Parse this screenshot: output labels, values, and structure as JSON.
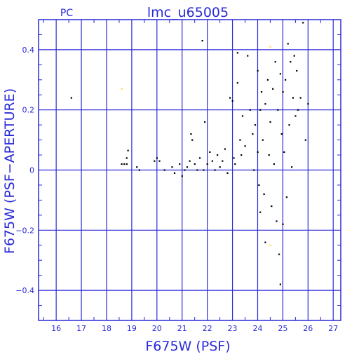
{
  "chart_data": {
    "type": "scatter",
    "title": "lmc_u65005",
    "corner_label": "PC",
    "xlabel": "F675W (PSF)",
    "ylabel": "F675W (PSF−APERTURE)",
    "xlim": [
      15.3,
      27.3
    ],
    "ylim": [
      -0.5,
      0.5
    ],
    "grid": true,
    "xticks": [
      16,
      17,
      18,
      19,
      20,
      21,
      22,
      23,
      24,
      25,
      26,
      27
    ],
    "yticks": [
      -0.4,
      -0.2,
      0,
      0.2,
      0.4
    ],
    "ytick_labels": [
      "−0.4",
      "−0.2",
      "0",
      "0.2",
      "0.4"
    ],
    "colors": {
      "axes": "#2a2ad8",
      "points": "#000000",
      "highlight": "#ffd24a"
    },
    "series": [
      {
        "points": [
          [
            16.6,
            0.24
          ],
          [
            18.6,
            0.02
          ],
          [
            18.7,
            0.02
          ],
          [
            18.8,
            0.02
          ],
          [
            18.85,
            0.065
          ],
          [
            18.8,
            0.04
          ],
          [
            19.2,
            0.01
          ],
          [
            19.3,
            0.0
          ],
          [
            19.9,
            0.03
          ],
          [
            20.0,
            0.04
          ],
          [
            20.1,
            0.03
          ],
          [
            20.3,
            0.0
          ],
          [
            20.6,
            0.01
          ],
          [
            20.7,
            -0.01
          ],
          [
            20.9,
            0.02
          ],
          [
            21.0,
            -0.02
          ],
          [
            21.1,
            0.0
          ],
          [
            21.2,
            0.01
          ],
          [
            21.3,
            0.03
          ],
          [
            21.35,
            0.12
          ],
          [
            21.4,
            0.1
          ],
          [
            21.5,
            0.02
          ],
          [
            21.6,
            0.0
          ],
          [
            21.7,
            0.04
          ],
          [
            21.8,
            0.43
          ],
          [
            21.85,
            0.0
          ],
          [
            21.9,
            0.16
          ],
          [
            22.0,
            0.02
          ],
          [
            22.1,
            0.06
          ],
          [
            22.2,
            0.03
          ],
          [
            22.3,
            0.0
          ],
          [
            22.4,
            0.05
          ],
          [
            22.5,
            0.01
          ],
          [
            22.6,
            0.03
          ],
          [
            22.7,
            0.07
          ],
          [
            22.8,
            -0.01
          ],
          [
            22.9,
            0.24
          ],
          [
            23.0,
            0.23
          ],
          [
            23.05,
            0.04
          ],
          [
            23.1,
            0.02
          ],
          [
            23.2,
            0.39
          ],
          [
            23.2,
            0.29
          ],
          [
            23.3,
            0.1
          ],
          [
            23.35,
            0.05
          ],
          [
            23.4,
            0.18
          ],
          [
            23.5,
            0.08
          ],
          [
            23.6,
            0.38
          ],
          [
            23.7,
            0.2
          ],
          [
            23.8,
            0.12
          ],
          [
            23.85,
            0.0
          ],
          [
            23.9,
            0.15
          ],
          [
            24.0,
            0.33
          ],
          [
            24.0,
            0.06
          ],
          [
            24.05,
            -0.05
          ],
          [
            24.1,
            0.2
          ],
          [
            24.1,
            -0.14
          ],
          [
            24.15,
            0.26
          ],
          [
            24.2,
            0.1
          ],
          [
            24.25,
            -0.08
          ],
          [
            24.3,
            0.22
          ],
          [
            24.3,
            -0.24
          ],
          [
            24.4,
            0.3
          ],
          [
            24.45,
            0.05
          ],
          [
            24.5,
            0.16
          ],
          [
            24.55,
            -0.12
          ],
          [
            24.6,
            0.27
          ],
          [
            24.65,
            0.02
          ],
          [
            24.7,
            0.36
          ],
          [
            24.75,
            -0.17
          ],
          [
            24.8,
            0.2
          ],
          [
            24.85,
            -0.28
          ],
          [
            24.9,
            0.32
          ],
          [
            24.9,
            -0.38
          ],
          [
            24.95,
            0.12
          ],
          [
            25.0,
            0.26
          ],
          [
            25.0,
            -0.18
          ],
          [
            25.05,
            0.06
          ],
          [
            25.1,
            0.3
          ],
          [
            25.15,
            -0.09
          ],
          [
            25.2,
            0.42
          ],
          [
            25.25,
            0.15
          ],
          [
            25.3,
            0.36
          ],
          [
            25.35,
            0.01
          ],
          [
            25.4,
            0.24
          ],
          [
            25.45,
            0.38
          ],
          [
            25.5,
            0.18
          ],
          [
            25.55,
            0.33
          ],
          [
            25.6,
            0.2
          ],
          [
            25.7,
            0.24
          ],
          [
            25.8,
            0.49
          ],
          [
            25.9,
            0.1
          ],
          [
            26.0,
            0.22
          ]
        ]
      },
      {
        "points": [
          [
            18.6,
            0.27
          ],
          [
            24.5,
            0.41
          ],
          [
            24.5,
            -0.25
          ]
        ]
      }
    ]
  }
}
